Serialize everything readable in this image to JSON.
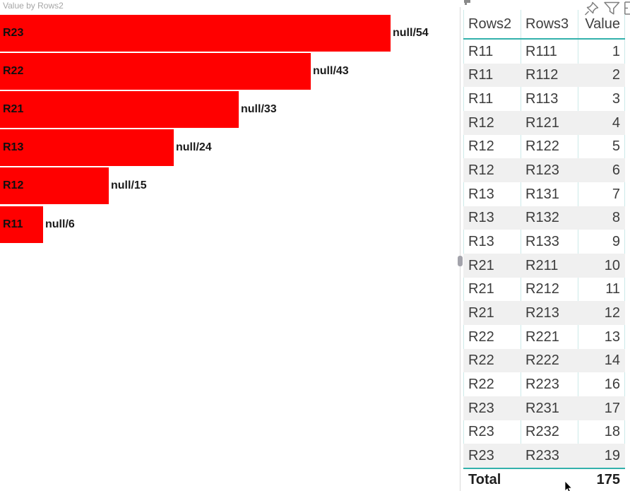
{
  "chart_data": {
    "type": "bar",
    "orientation": "horizontal",
    "title": "Value by Rows2",
    "categories": [
      "R23",
      "R22",
      "R21",
      "R13",
      "R12",
      "R11"
    ],
    "values": [
      54,
      43,
      33,
      24,
      15,
      6
    ],
    "data_labels": [
      "null/54",
      "null/43",
      "null/33",
      "null/24",
      "null/15",
      "null/6"
    ],
    "xlim": [
      0,
      54
    ],
    "grid": "off",
    "legend": "off",
    "bar_color": "#ff0000"
  },
  "table": {
    "columns": [
      {
        "label": "Rows2",
        "align": "left"
      },
      {
        "label": "Rows3",
        "align": "left"
      },
      {
        "label": "Value",
        "align": "right"
      }
    ],
    "rows": [
      [
        "R11",
        "R111",
        "1"
      ],
      [
        "R11",
        "R112",
        "2"
      ],
      [
        "R11",
        "R113",
        "3"
      ],
      [
        "R12",
        "R121",
        "4"
      ],
      [
        "R12",
        "R122",
        "5"
      ],
      [
        "R12",
        "R123",
        "6"
      ],
      [
        "R13",
        "R131",
        "7"
      ],
      [
        "R13",
        "R132",
        "8"
      ],
      [
        "R13",
        "R133",
        "9"
      ],
      [
        "R21",
        "R211",
        "10"
      ],
      [
        "R21",
        "R212",
        "11"
      ],
      [
        "R21",
        "R213",
        "12"
      ],
      [
        "R22",
        "R221",
        "13"
      ],
      [
        "R22",
        "R222",
        "14"
      ],
      [
        "R22",
        "R223",
        "16"
      ],
      [
        "R23",
        "R231",
        "17"
      ],
      [
        "R23",
        "R232",
        "18"
      ],
      [
        "R23",
        "R233",
        "19"
      ]
    ],
    "total_label": "Total",
    "total_value": "175"
  },
  "visual_header": {
    "icons": [
      "pin-icon",
      "filter-icon",
      "focus-mode-partial-icon"
    ]
  },
  "colors": {
    "bar": "#ff0000",
    "chart_title": "#a6a6a6",
    "table_text": "#3c3c3c",
    "grid_strong": "#33b1ac",
    "grid_light": "#cdeae9",
    "alt_row": "#f0f0f0",
    "total_text": "#1e1e1e",
    "icon_gray": "#7f7f7f"
  }
}
